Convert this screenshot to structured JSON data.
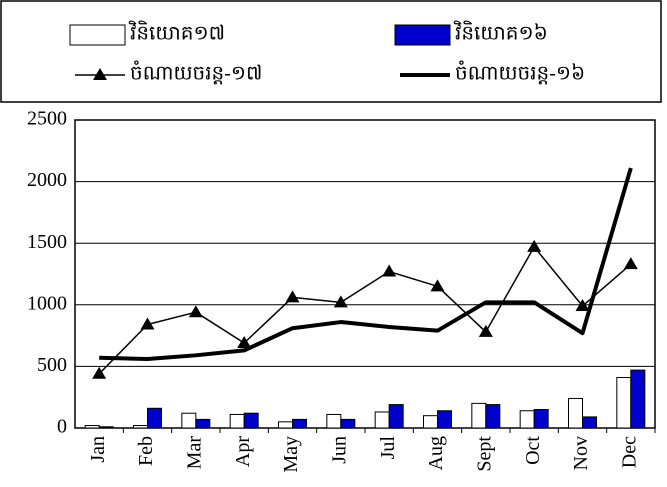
{
  "chart_data": {
    "type": "bar",
    "categories": [
      "Jan",
      "Feb",
      "Mar",
      "Apr",
      "May",
      "Jun",
      "Jul",
      "Aug",
      "Sept",
      "Oct",
      "Nov",
      "Dec"
    ],
    "series": [
      {
        "name": "វិនិយោគ១៧",
        "kind": "bar",
        "color": "#ffffff",
        "values": [
          20,
          20,
          120,
          110,
          50,
          110,
          130,
          100,
          200,
          140,
          240,
          410
        ]
      },
      {
        "name": "វិនិយោគ១៦",
        "kind": "bar",
        "color": "#0000cc",
        "values": [
          10,
          160,
          70,
          120,
          70,
          70,
          190,
          140,
          190,
          150,
          90,
          470
        ]
      },
      {
        "name": "ចំណាយចរន្ត-១៧",
        "kind": "line",
        "color": "#000000",
        "marker": "triangle",
        "width": 1.5,
        "values": [
          440,
          840,
          940,
          690,
          1060,
          1020,
          1270,
          1150,
          780,
          1470,
          990,
          1330
        ]
      },
      {
        "name": "ចំណាយចរន្ត-១៦",
        "kind": "line",
        "color": "#000000",
        "width": 4,
        "values": [
          570,
          560,
          590,
          630,
          810,
          860,
          820,
          790,
          1020,
          1020,
          770,
          2110
        ]
      }
    ],
    "ylim": [
      0,
      2500
    ],
    "yticks": [
      0,
      500,
      1000,
      1500,
      2000,
      2500
    ],
    "grid": true
  }
}
